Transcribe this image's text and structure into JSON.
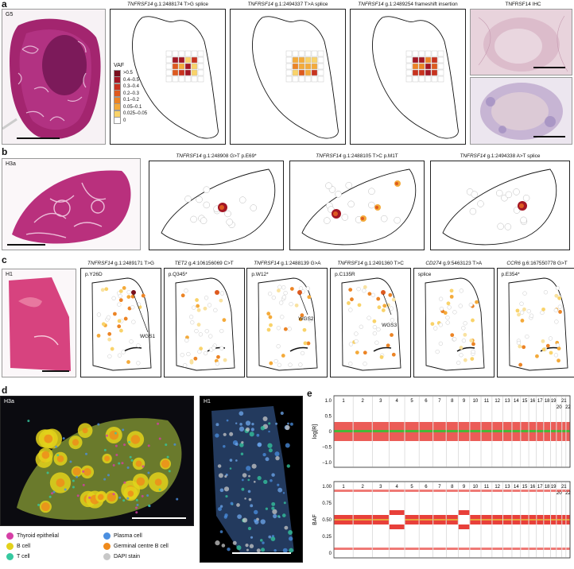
{
  "panels": {
    "a": {
      "label": "a",
      "sample": "G5",
      "ihc_title": "TNFRSF14 IHC",
      "titles": [
        {
          "gene": "TNFRSF14",
          "rest": " g.1:2488174 T>G splice"
        },
        {
          "gene": "TNFRSF14",
          "rest": " g.1:2494337 T>A splice"
        },
        {
          "gene": "TNFRSF14",
          "rest": " g.1:2489254 frameshift insertion"
        }
      ],
      "vaf_legend": {
        "title": "VAF",
        "bins": [
          ">0.5",
          "0.4–0.5",
          "0.3–0.4",
          "0.2–0.3",
          "0.1–0.2",
          "0.05–0.1",
          "0.025–0.05",
          "0"
        ],
        "colors": [
          "#7a0f1e",
          "#a31624",
          "#c8321e",
          "#de5a1f",
          "#ec8425",
          "#f4aa3a",
          "#f9d36a",
          "#ffffff"
        ]
      }
    },
    "b": {
      "label": "b",
      "sample": "H3a",
      "titles": [
        {
          "gene": "TNFRSF14",
          "rest": " g.1:248908 G>T p.E69*"
        },
        {
          "gene": "TNFRSF14",
          "rest": " g.1:2488105 T>C p.M1T"
        },
        {
          "gene": "TNFRSF14",
          "rest": " g.1:2494338 A>T splice"
        }
      ]
    },
    "c": {
      "label": "c",
      "sample": "H1",
      "titles": [
        {
          "gene": "TNFRSF14",
          "rest": " g.1:2489171 T>G"
        },
        {
          "gene": "TET2",
          "rest": " g.4:106156069 C>T"
        },
        {
          "gene": "TNFRSF14",
          "rest": " g.1:2488139 G>A"
        },
        {
          "gene": "TNFRSF14",
          "rest": " g.1:2491360 T>C"
        },
        {
          "gene": "CD274",
          "rest": " g.9:5463123 T>A"
        },
        {
          "gene": "CCR6",
          "rest": " g.6:167550778 G>T"
        }
      ],
      "protein": [
        "p.Y26D",
        "p.Q345*",
        "p.W12*",
        "p.C135R",
        "splice",
        "p.E354*"
      ],
      "wgs": [
        "WGS1",
        "WGS2",
        "WGS3"
      ]
    },
    "d": {
      "label": "d",
      "sample_left": "H3a",
      "sample_right": "H1",
      "legend": [
        {
          "name": "Thyroid epithelial",
          "color": "#d63fa6"
        },
        {
          "name": "Plasma cell",
          "color": "#4b8fe0"
        },
        {
          "name": "B cell",
          "color": "#e3d21b"
        },
        {
          "name": "Germinal centre B cell",
          "color": "#ef8a1c"
        },
        {
          "name": "T cell",
          "color": "#36c9a0"
        },
        {
          "name": "DAPI stain",
          "color": "#c8c8c8"
        }
      ]
    },
    "e": {
      "label": "e",
      "ylabel_top": "log[R]",
      "ylabel_bottom": "BAF",
      "yticks_top": [
        "1.0",
        "0.5",
        "0",
        "−0.5",
        "−1.0"
      ],
      "yticks_bottom": [
        "1.00",
        "0.75",
        "0.50",
        "0.25",
        "0"
      ],
      "chromosomes": [
        "1",
        "2",
        "3",
        "4",
        "5",
        "6",
        "7",
        "8",
        "9",
        "10",
        "11",
        "12",
        "13",
        "14",
        "15",
        "16",
        "17",
        "18",
        "19",
        "20",
        "21",
        "22"
      ]
    }
  }
}
